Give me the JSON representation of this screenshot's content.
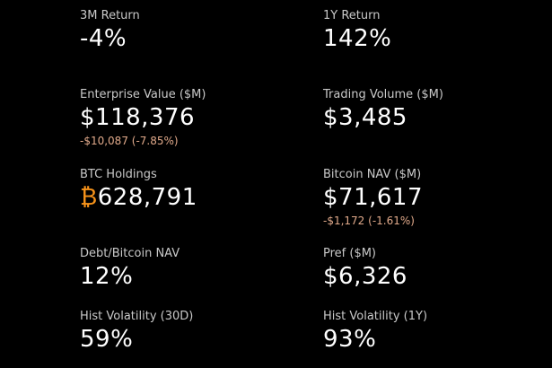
{
  "colors": {
    "background": "#000000",
    "label": "#c9c9c9",
    "value": "#ffffff",
    "change_negative": "#e0a98a",
    "bitcoin_accent": "#f7931a"
  },
  "metrics": {
    "return_3m": {
      "label": "3M Return",
      "value": "-4%"
    },
    "return_1y": {
      "label": "1Y Return",
      "value": "142%"
    },
    "enterprise_value": {
      "label": "Enterprise Value ($M)",
      "value": "$118,376",
      "change": "-$10,087 (-7.85%)"
    },
    "trading_volume": {
      "label": "Trading Volume ($M)",
      "value": "$3,485"
    },
    "btc_holdings": {
      "label": "BTC Holdings",
      "symbol": "₿",
      "value": "628,791"
    },
    "bitcoin_nav": {
      "label": "Bitcoin NAV ($M)",
      "value": "$71,617",
      "change": "-$1,172 (-1.61%)"
    },
    "debt_bitcoin_nav": {
      "label": "Debt/Bitcoin NAV",
      "value": "12%"
    },
    "pref": {
      "label": "Pref ($M)",
      "value": "$6,326"
    },
    "hist_vol_30d": {
      "label": "Hist Volatility (30D)",
      "value": "59%"
    },
    "hist_vol_1y": {
      "label": "Hist Volatility (1Y)",
      "value": "93%"
    }
  }
}
